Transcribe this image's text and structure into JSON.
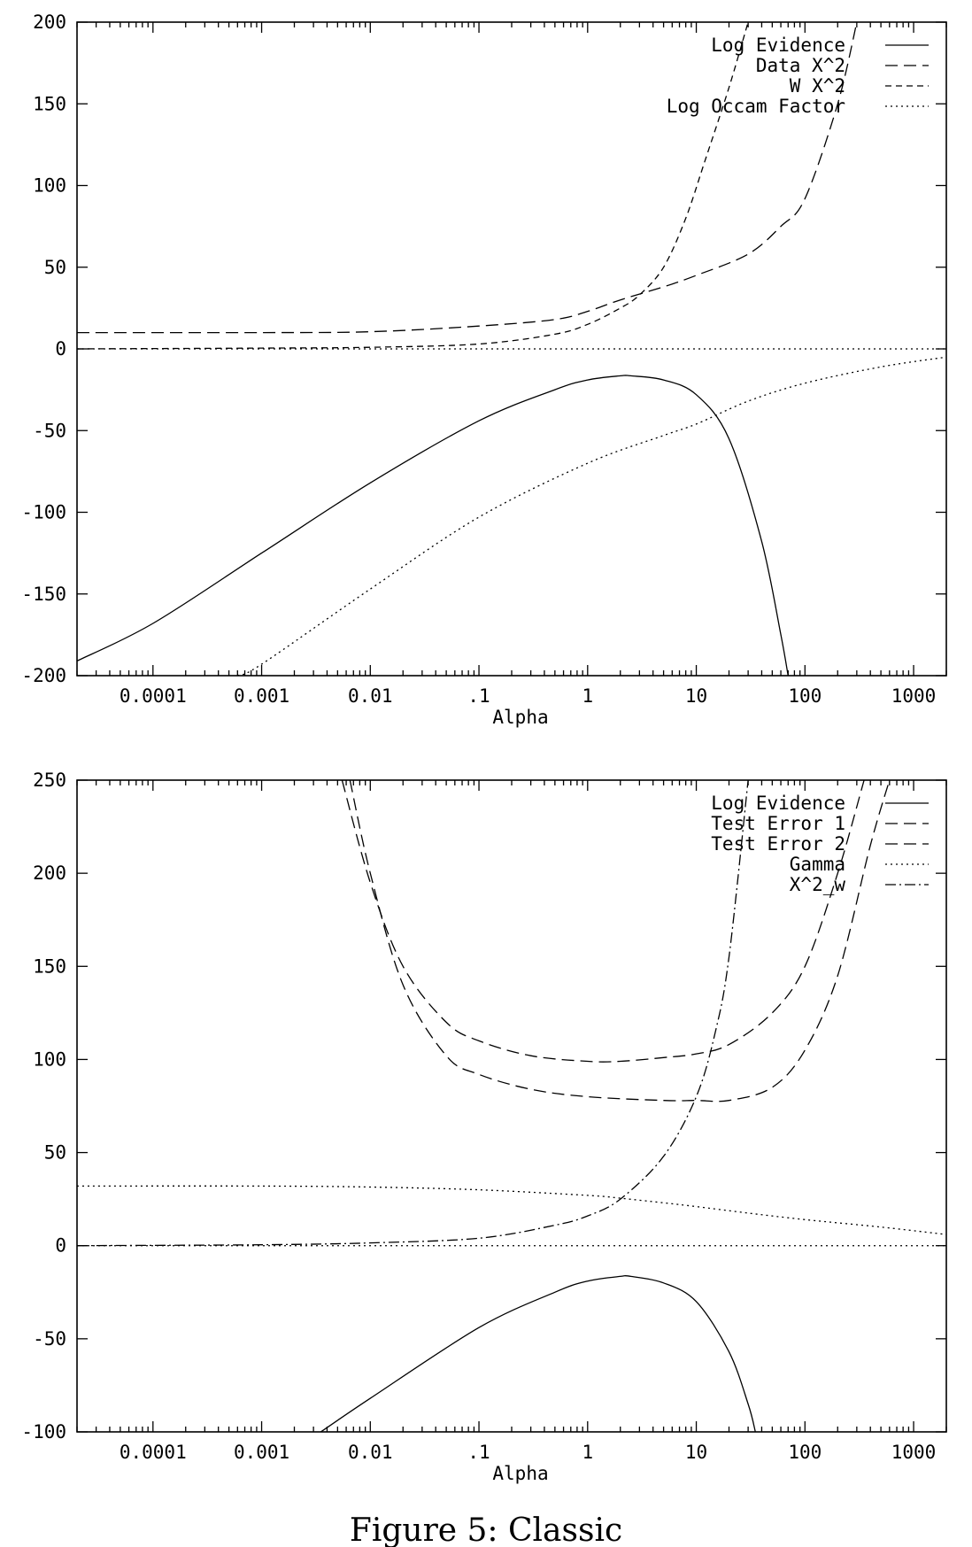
{
  "chart_data": [
    {
      "type": "line",
      "title": "",
      "xlabel": "Alpha",
      "ylabel": "",
      "x_scale": "log",
      "xlim": [
        2e-05,
        2000
      ],
      "ylim": [
        -200,
        200
      ],
      "x_tick_labels": [
        "0.0001",
        "0.001",
        "0.01",
        ".1",
        "1",
        "10",
        "100",
        "1000"
      ],
      "x_tick_values": [
        0.0001,
        0.001,
        0.01,
        0.1,
        1,
        10,
        100,
        1000
      ],
      "y_ticks": [
        200,
        150,
        100,
        50,
        0,
        -50,
        -100,
        -150,
        -200
      ],
      "legend_position": "top-right",
      "grid": false,
      "series": [
        {
          "name": "Log Evidence",
          "dash": "solid",
          "x": [
            2e-05,
            0.0001,
            0.001,
            0.01,
            0.1,
            0.5,
            1,
            2,
            2.5,
            5,
            10,
            20,
            40,
            60,
            70
          ],
          "y": [
            -191,
            -168,
            -125,
            -82,
            -44,
            -25,
            -19,
            -16.5,
            -16.5,
            -19,
            -28,
            -55,
            -118,
            -175,
            -200
          ]
        },
        {
          "name": "Data X^2",
          "dash": "long",
          "x": [
            2e-05,
            0.001,
            0.01,
            0.1,
            0.5,
            1,
            2,
            5,
            10,
            30,
            60,
            100,
            200,
            300
          ],
          "y": [
            10,
            10,
            10.5,
            14,
            18,
            23,
            30,
            38,
            45,
            58,
            75,
            92,
            150,
            200
          ]
        },
        {
          "name": "W X^2",
          "dash": "short",
          "x": [
            2e-05,
            0.001,
            0.01,
            0.1,
            0.5,
            1,
            2,
            3,
            5,
            8,
            12,
            20,
            30
          ],
          "y": [
            0,
            0.5,
            1,
            3,
            9,
            15,
            25,
            33,
            50,
            80,
            115,
            160,
            200
          ]
        },
        {
          "name": "Log Occam Factor",
          "dash": "dotted",
          "x": [
            0.0006,
            0.001,
            0.01,
            0.1,
            1,
            5,
            10,
            30,
            100,
            500,
            2000
          ],
          "y": [
            -200,
            -193,
            -147,
            -103,
            -70,
            -53,
            -46,
            -32,
            -21,
            -11,
            -5
          ]
        }
      ],
      "reference_line": {
        "y": 0,
        "dash": "dotted"
      }
    },
    {
      "type": "line",
      "title": "",
      "xlabel": "Alpha",
      "ylabel": "",
      "x_scale": "log",
      "xlim": [
        2e-05,
        2000
      ],
      "ylim": [
        -100,
        250
      ],
      "x_tick_labels": [
        "0.0001",
        "0.001",
        "0.01",
        ".1",
        "1",
        "10",
        "100",
        "1000"
      ],
      "x_tick_values": [
        0.0001,
        0.001,
        0.01,
        0.1,
        1,
        10,
        100,
        1000
      ],
      "y_ticks": [
        250,
        200,
        150,
        100,
        50,
        0,
        -50,
        -100
      ],
      "legend_position": "top-right",
      "grid": false,
      "series": [
        {
          "name": "Log Evidence",
          "dash": "solid",
          "x": [
            0.0035,
            0.01,
            0.1,
            0.5,
            1,
            2,
            2.5,
            5,
            10,
            20,
            30,
            35
          ],
          "y": [
            -100,
            -82,
            -44,
            -25,
            -19,
            -16.5,
            -16.5,
            -20,
            -30,
            -57,
            -85,
            -100
          ]
        },
        {
          "name": "Test Error 1",
          "dash": "long",
          "x": [
            0.0055,
            0.01,
            0.02,
            0.05,
            0.1,
            0.3,
            1,
            2,
            5,
            10,
            20,
            50,
            100,
            200,
            350
          ],
          "y": [
            250,
            195,
            150,
            120,
            110,
            102,
            99,
            99,
            101,
            103,
            108,
            125,
            150,
            200,
            250
          ]
        },
        {
          "name": "Test Error 2",
          "dash": "long",
          "x": [
            0.0065,
            0.01,
            0.02,
            0.05,
            0.1,
            0.3,
            1,
            5,
            10,
            20,
            50,
            100,
            200,
            400,
            600
          ],
          "y": [
            250,
            200,
            140,
            102,
            92,
            84,
            80,
            78,
            78,
            78,
            85,
            105,
            145,
            215,
            250
          ]
        },
        {
          "name": "Gamma",
          "dash": "dotted",
          "x": [
            2e-05,
            0.001,
            0.01,
            0.1,
            1,
            2,
            5,
            10,
            30,
            100,
            500,
            2000
          ],
          "y": [
            32,
            32,
            31.5,
            30,
            27,
            25.5,
            23,
            21,
            17.5,
            14,
            10,
            6
          ]
        },
        {
          "name": "X^2_w",
          "dash": "dashdot",
          "x": [
            2e-05,
            0.001,
            0.01,
            0.1,
            0.5,
            1,
            2,
            5,
            10,
            15,
            20,
            30
          ],
          "y": [
            0,
            0.5,
            1.5,
            4,
            11,
            16,
            25,
            48,
            80,
            115,
            155,
            250
          ]
        }
      ],
      "reference_line": {
        "y": 0,
        "dash": "dotted"
      }
    }
  ],
  "caption": "Figure 5: Classic"
}
